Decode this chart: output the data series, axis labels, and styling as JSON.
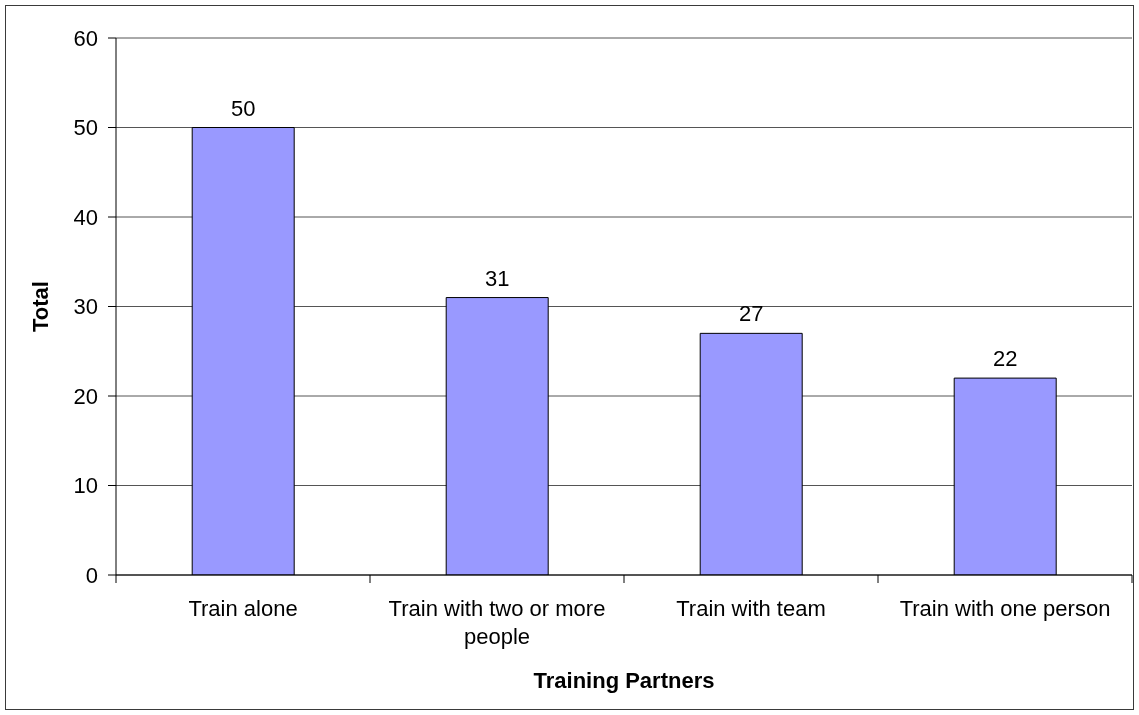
{
  "chart_data": {
    "type": "bar",
    "xlabel": "Training Partners",
    "ylabel": "Total",
    "categories": [
      "Train alone",
      "Train with two or more people",
      "Train with team",
      "Train with one person"
    ],
    "values": [
      50,
      31,
      27,
      22
    ],
    "color": "#9999ff",
    "ylim": [
      0,
      60
    ],
    "yticks": [
      0,
      10,
      20,
      30,
      40,
      50,
      60
    ],
    "grid": "y",
    "data_labels": true
  }
}
